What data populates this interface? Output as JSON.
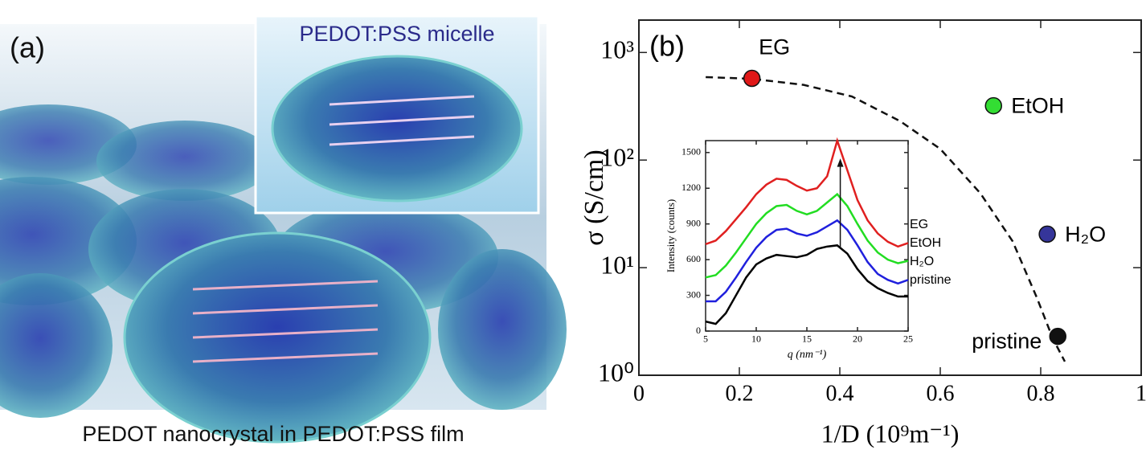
{
  "panel_a": {
    "label": "(a)",
    "inset_title": "PEDOT:PSS micelle",
    "caption": "PEDOT nanocrystal in PEDOT:PSS film"
  },
  "chart_data": [
    {
      "type": "scatter",
      "label": "(b)",
      "xlabel": "1/D (10⁹m⁻¹)",
      "ylabel": "σ (S/cm)",
      "yscale": "log",
      "grid": false,
      "xlim": [
        0,
        1
      ],
      "xticks": [
        0,
        0.2,
        0.4,
        0.6,
        0.8,
        1
      ],
      "ylim": [
        1,
        2000
      ],
      "yticks": [
        {
          "value": 1,
          "label": "10⁰"
        },
        {
          "value": 10,
          "label": "10¹"
        },
        {
          "value": 100,
          "label": "10²"
        },
        {
          "value": 1000,
          "label": "10³"
        }
      ],
      "series": [
        {
          "name": "EG",
          "color": "#e01818",
          "x": [
            0.225
          ],
          "values": [
            575
          ]
        },
        {
          "name": "EtOH",
          "color": "#33dd33",
          "x": [
            0.706
          ],
          "values": [
            320
          ]
        },
        {
          "name": "H₂O",
          "color": "#35359a",
          "x": [
            0.813
          ],
          "values": [
            20.5
          ]
        },
        {
          "name": "pristine",
          "color": "#111111",
          "x": [
            0.834
          ],
          "values": [
            2.3
          ]
        }
      ],
      "fit_curve": {
        "x": [
          0.133,
          0.224,
          0.328,
          0.424,
          0.52,
          0.6,
          0.68,
          0.744,
          0.792,
          0.824,
          0.848
        ],
        "values": [
          590,
          570,
          500,
          390,
          230,
          127,
          49,
          17.6,
          5.3,
          2.2,
          1.34
        ],
        "dashed": true
      }
    },
    {
      "type": "line",
      "xlabel": "q (nm⁻¹)",
      "ylabel": "Intensity (counts)",
      "xlim": [
        5,
        25
      ],
      "xticks": [
        5,
        10,
        15,
        20,
        25
      ],
      "ylim": [
        0,
        1600
      ],
      "yticks": [
        0,
        300,
        600,
        900,
        1200,
        1500
      ],
      "x": [
        5,
        6,
        7,
        8,
        9,
        10,
        11,
        12,
        13,
        14,
        15,
        16,
        17,
        18,
        19,
        20,
        21,
        22,
        23,
        24,
        25
      ],
      "series": [
        {
          "name": "EG",
          "color": "#e02020",
          "values": [
            730,
            760,
            840,
            940,
            1040,
            1150,
            1230,
            1280,
            1270,
            1220,
            1180,
            1200,
            1300,
            1600,
            1350,
            1100,
            930,
            820,
            750,
            710,
            740
          ]
        },
        {
          "name": "EtOH",
          "color": "#22dd22",
          "values": [
            450,
            470,
            550,
            660,
            780,
            900,
            990,
            1050,
            1060,
            1010,
            980,
            1010,
            1080,
            1150,
            1050,
            900,
            760,
            660,
            600,
            570,
            590
          ]
        },
        {
          "name": "H₂O",
          "color": "#2020dd",
          "values": [
            250,
            250,
            330,
            450,
            580,
            700,
            790,
            850,
            860,
            820,
            800,
            830,
            880,
            930,
            850,
            720,
            580,
            480,
            430,
            400,
            430
          ]
        },
        {
          "name": "pristine",
          "color": "#000000",
          "values": [
            80,
            60,
            150,
            300,
            450,
            560,
            610,
            640,
            630,
            620,
            640,
            690,
            710,
            720,
            650,
            520,
            420,
            360,
            320,
            290,
            290
          ]
        }
      ]
    }
  ]
}
